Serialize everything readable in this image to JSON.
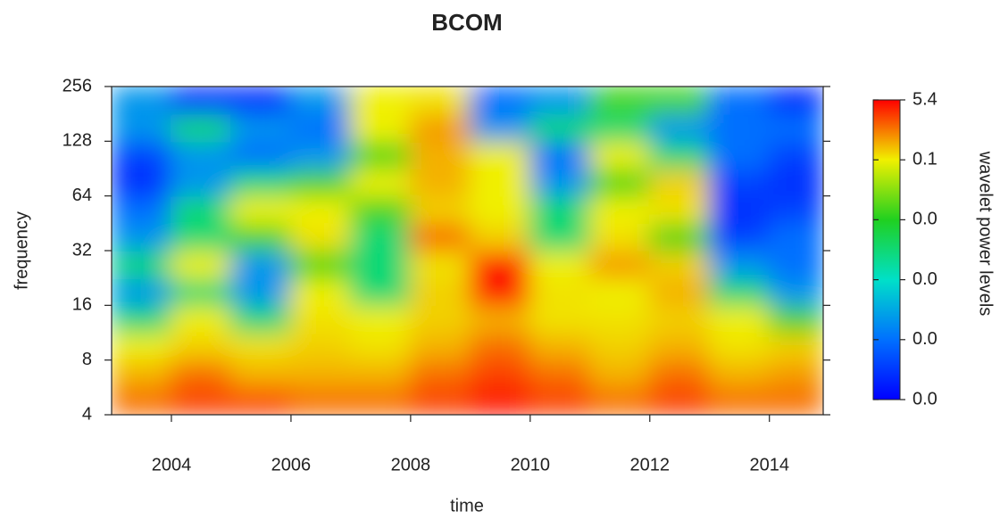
{
  "chart_data": {
    "type": "heatmap",
    "title": "BCOM",
    "x_label": "time",
    "y_label": "frequency",
    "xlim": [
      2003,
      2014.9
    ],
    "xticks": [
      2004,
      2006,
      2008,
      2010,
      2012,
      2014
    ],
    "ylim": [
      4,
      256
    ],
    "yticks": [
      4,
      8,
      16,
      32,
      64,
      128,
      256
    ],
    "y_log_scale": true,
    "x_edges": [
      2003,
      2004,
      2005,
      2006,
      2007,
      2008,
      2009,
      2010,
      2011,
      2012,
      2013,
      2014,
      2014.9
    ],
    "y_edges": [
      4,
      5.66,
      8,
      11.3,
      16,
      22.6,
      32,
      45.3,
      64,
      90.5,
      128,
      181,
      256
    ],
    "z": [
      [
        3,
        4,
        4,
        3,
        3,
        4,
        5,
        4,
        3,
        4,
        3,
        3
      ],
      [
        1.5,
        3,
        1.5,
        1.5,
        1.5,
        3,
        4,
        3,
        1.5,
        3,
        1.5,
        2
      ],
      [
        0.1,
        0.8,
        0.4,
        0.8,
        0.4,
        1.5,
        3,
        1.5,
        0.8,
        1.5,
        0.4,
        0.8
      ],
      [
        0.03,
        0.1,
        0.03,
        0.4,
        0.1,
        0.8,
        1.5,
        0.4,
        0.4,
        0.8,
        0.1,
        0.05
      ],
      [
        0.01,
        0.03,
        0.01,
        0.1,
        0.03,
        0.8,
        5,
        0.4,
        0.1,
        1.5,
        0.03,
        0.01
      ],
      [
        0.03,
        0.1,
        0.01,
        0.05,
        0.03,
        0.4,
        5,
        0.1,
        2,
        0.8,
        0.01,
        0.005
      ],
      [
        0.01,
        0.03,
        0.05,
        0.4,
        0.03,
        3,
        0.8,
        0.03,
        0.4,
        0.05,
        0.003,
        0.005
      ],
      [
        0.005,
        0.03,
        0.1,
        0.1,
        0.05,
        0.8,
        0.1,
        0.03,
        0.1,
        0.4,
        0.002,
        0.003
      ],
      [
        0.002,
        0.01,
        0.03,
        0.05,
        0.1,
        1.5,
        0.1,
        0.01,
        0.05,
        0.8,
        0.003,
        0.002
      ],
      [
        0.003,
        0.01,
        0.005,
        0.01,
        0.05,
        1.5,
        0.1,
        0.005,
        0.1,
        0.03,
        0.005,
        0.003
      ],
      [
        0.01,
        0.03,
        0.01,
        0.005,
        0.1,
        2,
        0.01,
        0.03,
        0.03,
        0.01,
        0.005,
        0.005
      ],
      [
        0.01,
        0.002,
        0.002,
        0.01,
        0.1,
        0.4,
        0.005,
        0.01,
        0.05,
        0.05,
        0.005,
        0.002
      ]
    ],
    "colorbar": {
      "title": "wavelet power levels",
      "ticks": [
        {
          "value": 0,
          "label": "0.0"
        },
        {
          "value": 0.005,
          "label": "0.0"
        },
        {
          "value": 0.02,
          "label": "0.0"
        },
        {
          "value": 0.04,
          "label": "0.0"
        },
        {
          "value": 0.1,
          "label": "0.1"
        },
        5.4
      ],
      "colors": [
        "#0000ff",
        "#0070ff",
        "#00e0c8",
        "#20d020",
        "#f0f000",
        "#ff0000"
      ]
    }
  }
}
